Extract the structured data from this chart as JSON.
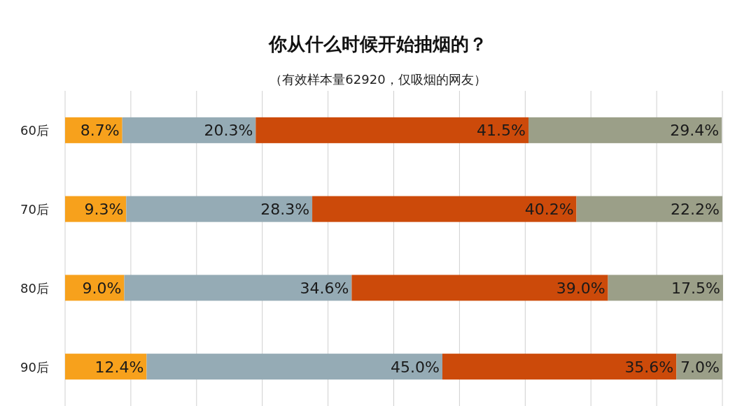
{
  "chart_data": {
    "type": "bar",
    "orientation": "horizontal",
    "stacked": true,
    "title": "你从什么时候开始抽烟的？",
    "subtitle": "（有效样本量62920，仅吸烟的网友）",
    "categories": [
      "60后",
      "70后",
      "80后",
      "90后"
    ],
    "series": [
      {
        "color": "#f7a11c",
        "values": [
          8.7,
          9.3,
          9.0,
          12.4
        ],
        "value_labels": [
          "8.7%",
          "9.3%",
          "9.0%",
          "12.4%"
        ]
      },
      {
        "color": "#95abb5",
        "values": [
          20.3,
          28.3,
          34.6,
          45.0
        ],
        "value_labels": [
          "20.3%",
          "28.3%",
          "34.6%",
          "45.0%"
        ]
      },
      {
        "color": "#cc4a0a",
        "values": [
          41.5,
          40.2,
          39.0,
          35.6
        ],
        "value_labels": [
          "41.5%",
          "40.2%",
          "39.0%",
          "35.6%"
        ]
      },
      {
        "color": "#9b9f88",
        "values": [
          29.4,
          22.2,
          17.5,
          7.0
        ],
        "value_labels": [
          "29.4%",
          "22.2%",
          "17.5%",
          "7.0%"
        ]
      }
    ],
    "xlim": [
      0,
      100
    ],
    "xticks": [
      {
        "value": 0,
        "label": null
      },
      {
        "value": 10,
        "label": null
      },
      {
        "value": 20,
        "label": null
      },
      {
        "value": 30,
        "label": null
      },
      {
        "value": 40,
        "label": null
      },
      {
        "value": 50,
        "label": null
      },
      {
        "value": 60,
        "label": null
      },
      {
        "value": 70,
        "label": null
      },
      {
        "value": 80,
        "label": null
      },
      {
        "value": 90,
        "label": null
      },
      {
        "value": 100,
        "label": null
      }
    ],
    "grid": "x",
    "tick_labels": "y"
  }
}
